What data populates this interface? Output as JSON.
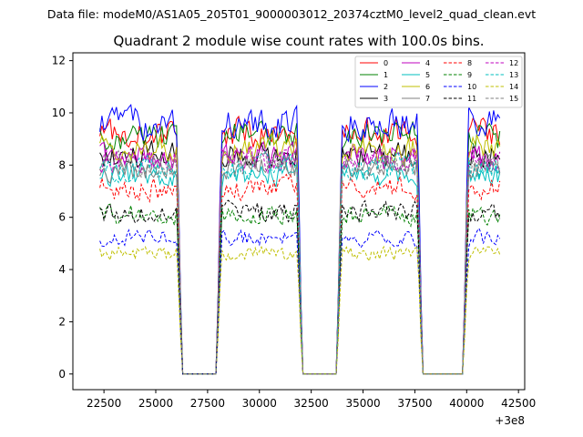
{
  "chart_data": {
    "type": "line",
    "suptitle": "Data file: modeM0/AS1A05_205T01_9000003012_20374cztM0_level2_quad_clean.evt",
    "title": "Quadrant 2 module wise count rates with 100.0s bins.",
    "xlabel": "",
    "ylabel": "",
    "x_offset_label": "+3e8",
    "xlim": [
      21000,
      42800
    ],
    "ylim": [
      -0.6,
      12.3
    ],
    "xticks": [
      22500,
      25000,
      27500,
      30000,
      32500,
      35000,
      37500,
      40000,
      42500
    ],
    "yticks": [
      0,
      2,
      4,
      6,
      8,
      10,
      12
    ],
    "x_range": [
      22300,
      41600
    ],
    "gaps": [
      [
        26150,
        28050
      ],
      [
        31950,
        33850
      ],
      [
        37750,
        39950
      ]
    ],
    "legend_position": "top-right",
    "series": [
      {
        "name": "0",
        "color": "#ff0000",
        "dash": "solid",
        "level": 9.2
      },
      {
        "name": "1",
        "color": "#008000",
        "dash": "solid",
        "level": 9.1
      },
      {
        "name": "2",
        "color": "#0000ff",
        "dash": "solid",
        "level": 9.6
      },
      {
        "name": "3",
        "color": "#000000",
        "dash": "solid",
        "level": 8.4
      },
      {
        "name": "4",
        "color": "#bf00bf",
        "dash": "solid",
        "level": 8.3
      },
      {
        "name": "5",
        "color": "#00bfbf",
        "dash": "solid",
        "level": 7.6
      },
      {
        "name": "6",
        "color": "#bfbf00",
        "dash": "solid",
        "level": 8.6
      },
      {
        "name": "7",
        "color": "#808080",
        "dash": "solid",
        "level": 7.9
      },
      {
        "name": "8",
        "color": "#ff0000",
        "dash": "dashed",
        "level": 7.1
      },
      {
        "name": "9",
        "color": "#008000",
        "dash": "dashed",
        "level": 6.1
      },
      {
        "name": "10",
        "color": "#0000ff",
        "dash": "dashed",
        "level": 5.2
      },
      {
        "name": "11",
        "color": "#000000",
        "dash": "dashed",
        "level": 6.2
      },
      {
        "name": "12",
        "color": "#bf00bf",
        "dash": "dashed",
        "level": 8.2
      },
      {
        "name": "13",
        "color": "#00bfbf",
        "dash": "dashed",
        "level": 7.9
      },
      {
        "name": "14",
        "color": "#bfbf00",
        "dash": "dashed",
        "level": 4.6
      },
      {
        "name": "15",
        "color": "#808080",
        "dash": "dashed",
        "level": 8.0
      }
    ]
  }
}
